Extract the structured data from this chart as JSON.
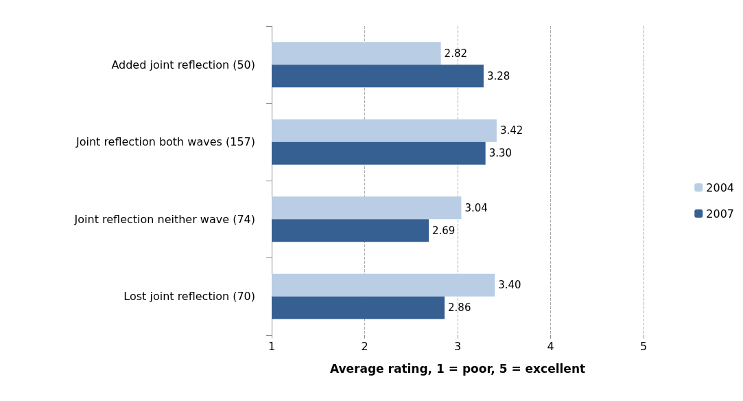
{
  "chart_data": {
    "type": "bar",
    "orientation": "horizontal",
    "xlabel": "Average rating, 1 = poor, 5 = excellent",
    "categories": [
      "Added joint reflection (50)",
      "Joint reflection both waves (157)",
      "Joint reflection neither wave (74)",
      "Lost joint reflection (70)"
    ],
    "series": [
      {
        "name": "2004",
        "color": "#b9cde5",
        "values": [
          2.82,
          3.42,
          3.04,
          3.4
        ],
        "value_labels": [
          "2.82",
          "3.42",
          "3.04",
          "3.40"
        ]
      },
      {
        "name": "2007",
        "color": "#376092",
        "values": [
          3.28,
          3.3,
          2.69,
          2.86
        ],
        "value_labels": [
          "3.28",
          "3.30",
          "2.69",
          "2.86"
        ]
      }
    ],
    "xlim": [
      1,
      5
    ],
    "xticks": [
      1,
      2,
      3,
      4,
      5
    ],
    "grid": "x",
    "legend": "right"
  }
}
